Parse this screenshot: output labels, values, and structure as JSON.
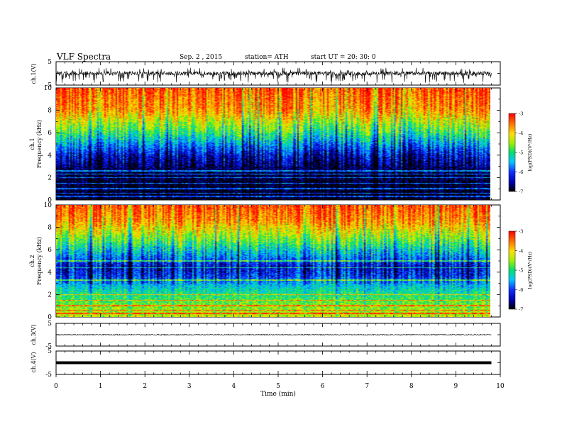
{
  "header": {
    "title": "VLF  Spectra",
    "date": "Sep. 2  , 2015",
    "station": "station= ATH",
    "start": "start  UT  =   20: 30: 0"
  },
  "chart_data": [
    {
      "type": "line",
      "panel": "ch1-waveform",
      "ylabel": "ch.1(V)",
      "yticks": [
        "5",
        "-5"
      ],
      "ylim": [
        -5,
        5
      ],
      "xlim": [
        0,
        10
      ],
      "data_end_min": 9.8,
      "signal": "noisy waveform, baseline near 0 V with frequent negative spikes to about -4 V"
    },
    {
      "type": "heatmap",
      "panel": "ch1-spectrogram",
      "ylabel": "ch.1\nFrequency  (kHz)",
      "ylabel_lines": [
        "ch.1",
        "Frequency  (kHz)"
      ],
      "yticks": [
        "0",
        "2",
        "4",
        "6",
        "8",
        "10"
      ],
      "ylim": [
        0,
        10
      ],
      "xlim": [
        0,
        10
      ],
      "colorbar": {
        "label": "log(PSD)(V²/Hz)",
        "ticks": [
          "-3",
          "-4",
          "-5",
          "-6",
          "-7"
        ],
        "range": [
          -7,
          -3
        ]
      },
      "profile_khz_logpsd": [
        [
          0,
          -7
        ],
        [
          1.6,
          -6.9
        ],
        [
          3,
          -6.7
        ],
        [
          4,
          -6.3
        ],
        [
          5,
          -5.6
        ],
        [
          6,
          -4.9
        ],
        [
          7,
          -4.3
        ],
        [
          8,
          -3.7
        ],
        [
          10,
          -3.3
        ]
      ],
      "lines_khz": [
        0.3,
        0.6,
        1.0,
        1.5,
        2.0,
        2.3,
        2.6
      ]
    },
    {
      "type": "heatmap",
      "panel": "ch2-spectrogram",
      "ylabel": "ch.2\nFrequency  (kHz)",
      "ylabel_lines": [
        "ch.2",
        "Frequency  (kHz)"
      ],
      "yticks": [
        "0",
        "2",
        "4",
        "6",
        "8",
        "10"
      ],
      "ylim": [
        0,
        10
      ],
      "xlim": [
        0,
        10
      ],
      "colorbar": {
        "label": "log(PSD)(V²/Hz)",
        "ticks": [
          "-3",
          "-4",
          "-5",
          "-6",
          "-7"
        ],
        "range": [
          -7,
          -3
        ]
      },
      "profile_khz_logpsd": [
        [
          0,
          -4.3
        ],
        [
          1,
          -4.6
        ],
        [
          2,
          -5.0
        ],
        [
          2.8,
          -5.4
        ],
        [
          3.5,
          -6.0
        ],
        [
          4.5,
          -6.3
        ],
        [
          5.5,
          -5.6
        ],
        [
          7,
          -4.6
        ],
        [
          8.5,
          -3.7
        ],
        [
          10,
          -3.3
        ]
      ],
      "lines_khz": [
        0.3,
        0.6,
        1.0,
        1.5,
        2.0,
        3.3,
        4.4,
        5.0
      ]
    },
    {
      "type": "line",
      "panel": "ch3-waveform",
      "ylabel": "ch.3(V)",
      "yticks": [
        "5",
        "-5"
      ],
      "ylim": [
        -5,
        5
      ],
      "xlim": [
        0,
        10
      ],
      "data_end_min": 9.8,
      "signal": "flat trace near 0 V with small noise"
    },
    {
      "type": "line",
      "panel": "ch4-waveform",
      "ylabel": "ch.4(V)",
      "yticks": [
        "5",
        "-5"
      ],
      "ylim": [
        -5,
        5
      ],
      "xlim": [
        0,
        10
      ],
      "data_end_min": 9.8,
      "signal": "thick flat trace near 0 V"
    }
  ],
  "xaxis": {
    "label": "Time  (min)",
    "ticks": [
      "0",
      "1",
      "2",
      "3",
      "4",
      "5",
      "6",
      "7",
      "8",
      "9",
      "10"
    ],
    "range": [
      0,
      10
    ]
  }
}
